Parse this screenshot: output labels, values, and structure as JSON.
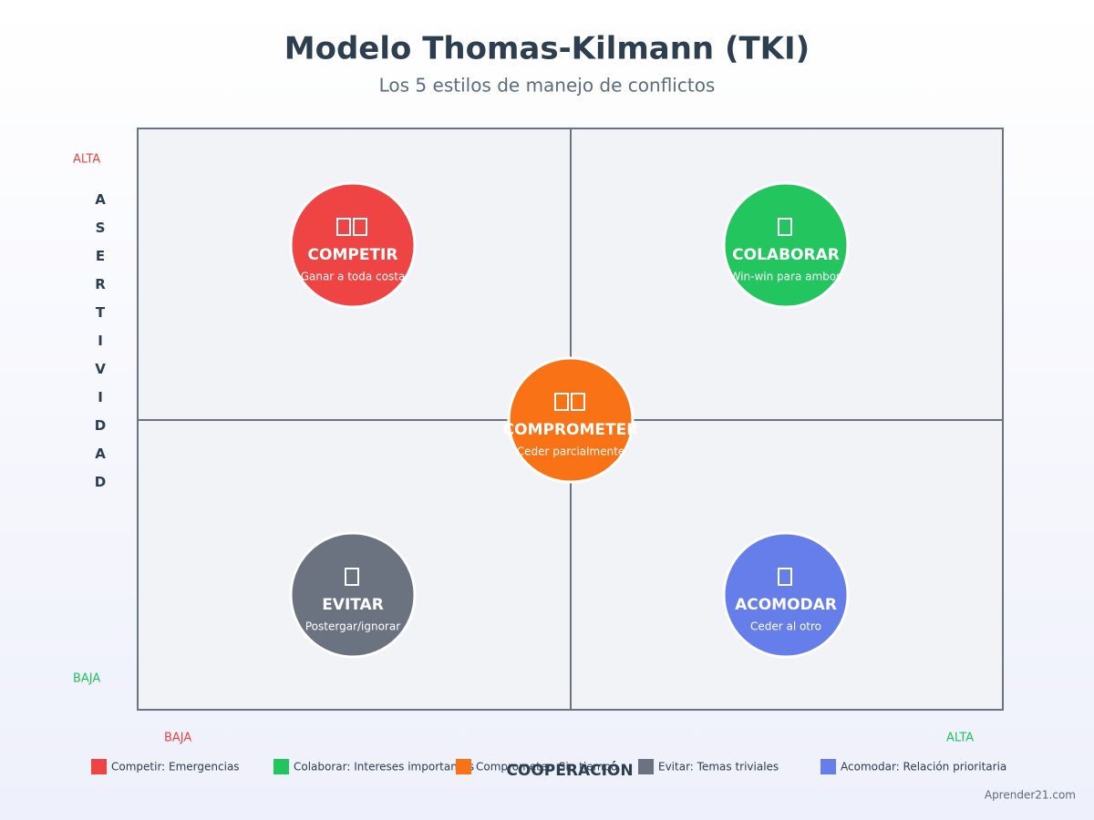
{
  "header": {
    "title": "Modelo Thomas-Kilmann (TKI)",
    "subtitle": "Los 5 estilos de manejo de conflictos"
  },
  "y_axis": {
    "label": "ASERTIVIDAD",
    "high": "ALTA",
    "low": "BAJA"
  },
  "x_axis": {
    "label": "COOPERACIÓN",
    "low": "BAJA",
    "high": "ALTA"
  },
  "styles": [
    {
      "name": "COMPETIR",
      "description": "Ganar a toda costa",
      "color": "#ef4444"
    },
    {
      "name": "COLABORAR",
      "description": "Win-win para ambos",
      "color": "#22c55e"
    },
    {
      "name": "COMPROMETER",
      "description": "Ceder parcialmente",
      "color": "#f97316"
    },
    {
      "name": "EVITAR",
      "description": "Postergar/ignorar",
      "color": "#6b7280"
    },
    {
      "name": "ACOMODAR",
      "description": "Ceder al otro",
      "color": "#667eea"
    }
  ],
  "legend": [
    "Competir: Emergencias",
    "Colaborar: Intereses importantes",
    "Comprometer: Sin tiempo",
    "Evitar: Temas triviales",
    "Acomodar: Relación prioritaria"
  ],
  "footer": "Aprender21.com"
}
